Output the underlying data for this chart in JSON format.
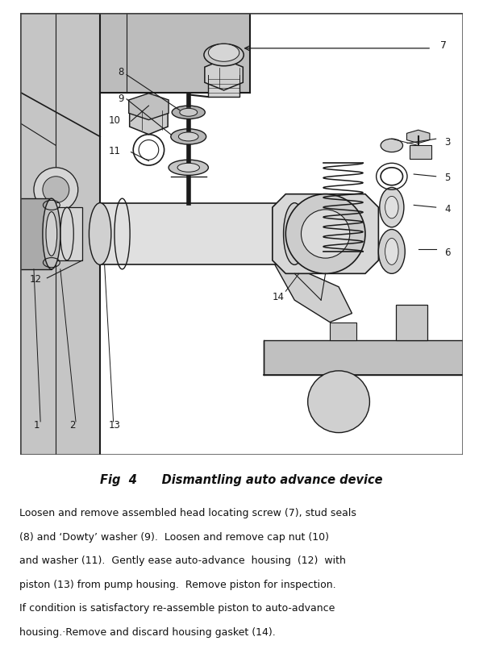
{
  "bg_color": "#ffffff",
  "diagram_border": "#333333",
  "lc": "#1a1a1a",
  "fc_light": "#f0f0f0",
  "fc_mid": "#d8d8d8",
  "fc_dark": "#b8b8b8",
  "fc_wall": "#c0c0c0",
  "fig_caption": "Fig  4      Dismantling auto advance device",
  "body_lines": [
    "Loosen and remove assembled head locating screw (7), stud seals",
    "(8) and ‘Dowty’ washer (9).  Loosen and remove cap nut (10)",
    "and washer (11).  Gently ease auto-advance  housing  (12)  with",
    "piston (13) from pump housing.  Remove piston for inspection.",
    "If condition is satisfactory re-assemble piston to auto-advance",
    "housing.·Remove and discard housing gasket (14)."
  ],
  "fig_width": 5.99,
  "fig_height": 8.0,
  "dpi": 100
}
